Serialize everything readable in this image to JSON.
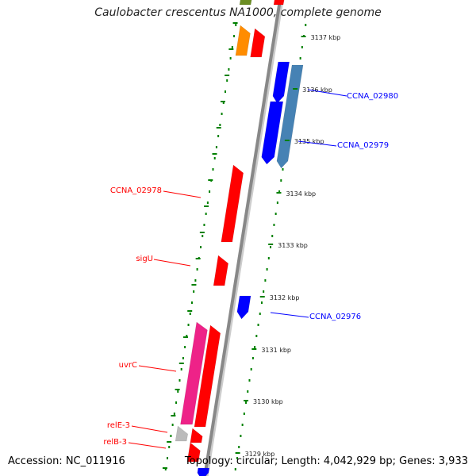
{
  "title": "Caulobacter crescentus NA1000, complete genome",
  "accession": "Accession: NC_011916",
  "stats": "Topology: circular; Length: 4,042,929 bp; Genes: 3,933",
  "colors": {
    "forward_gene": "#ff0000",
    "reverse_gene": "#0000ff",
    "reverse_gene_alt": "#4682b4",
    "magenta_gene": "#ee2288",
    "orange_gene": "#ff8c00",
    "olive_gene": "#6b8e23",
    "grey_gene": "#bbbbbb",
    "tick_green": "#008000",
    "backbone": "#888888"
  },
  "ticks": [
    {
      "label": "3137 kbp"
    },
    {
      "label": "3136 kbp"
    },
    {
      "label": "3135 kbp"
    },
    {
      "label": "3134 kbp"
    },
    {
      "label": "3133 kbp"
    },
    {
      "label": "3132 kbp"
    },
    {
      "label": "3131 kbp"
    },
    {
      "label": "3130 kbp"
    },
    {
      "label": "3129 kbp"
    }
  ],
  "gene_labels": [
    {
      "name": "CCNA_02980",
      "side": "right"
    },
    {
      "name": "CCNA_02979",
      "side": "right"
    },
    {
      "name": "CCNA_02978",
      "side": "left"
    },
    {
      "name": "sigU",
      "side": "left"
    },
    {
      "name": "CCNA_02976",
      "side": "right"
    },
    {
      "name": "uvrC",
      "side": "left"
    },
    {
      "name": "relE-3",
      "side": "left"
    },
    {
      "name": "relB-3",
      "side": "left"
    }
  ]
}
